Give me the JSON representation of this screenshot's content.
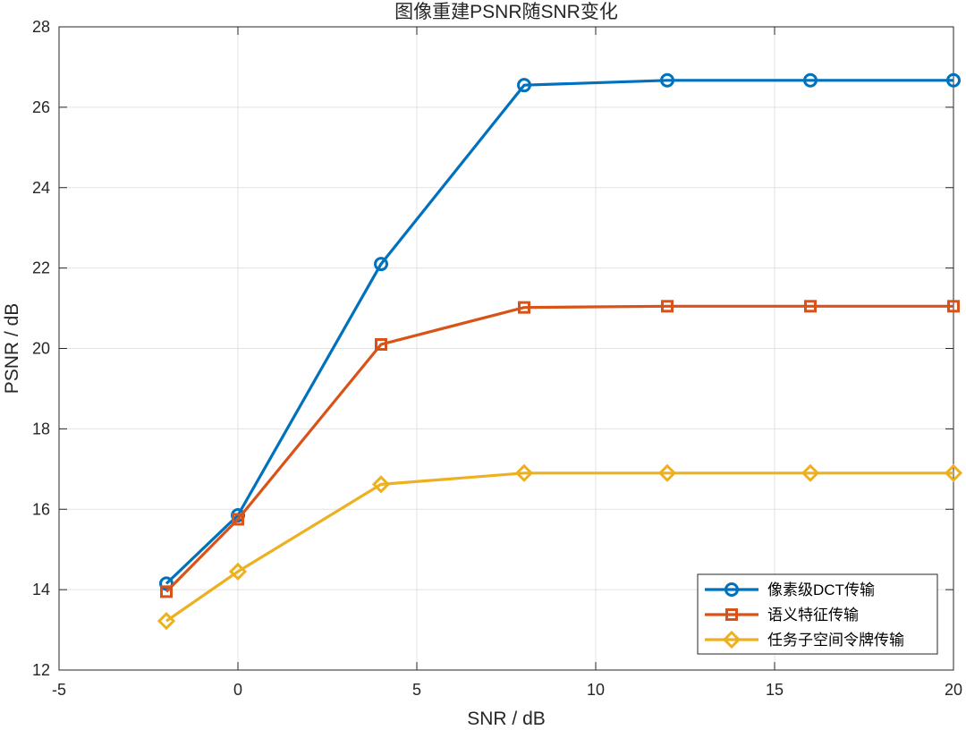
{
  "chart_data": {
    "type": "line",
    "title": "图像重建PSNR随SNR变化",
    "xlabel": "SNR / dB",
    "ylabel": "PSNR / dB",
    "xlim": [
      -5,
      20
    ],
    "ylim": [
      12,
      28
    ],
    "xticks": [
      -5,
      0,
      5,
      10,
      15,
      20
    ],
    "yticks": [
      12,
      14,
      16,
      18,
      20,
      22,
      24,
      26,
      28
    ],
    "grid": true,
    "legend_position": "bottom-right",
    "x": [
      -2,
      0,
      4,
      8,
      12,
      16,
      20
    ],
    "series": [
      {
        "name": "像素级DCT传输",
        "color": "#0072BD",
        "marker": "circle",
        "values": [
          14.15,
          15.85,
          22.1,
          26.55,
          26.67,
          26.67,
          26.67
        ]
      },
      {
        "name": "语义特征传输",
        "color": "#D95319",
        "marker": "square",
        "values": [
          13.95,
          15.75,
          20.1,
          21.02,
          21.05,
          21.05,
          21.05
        ]
      },
      {
        "name": "任务子空间令牌传输",
        "color": "#EDB120",
        "marker": "diamond",
        "values": [
          13.22,
          14.45,
          16.62,
          16.9,
          16.9,
          16.9,
          16.9
        ]
      }
    ]
  }
}
